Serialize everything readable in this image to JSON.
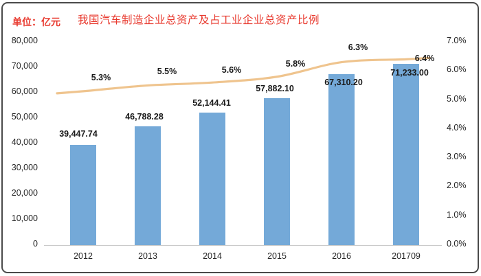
{
  "header": {
    "unit_label": "单位：亿元",
    "title": "我国汽车制造企业总资产及占工业企业总资产比例"
  },
  "colors": {
    "bar": "#74a9d8",
    "line": "#efc48e",
    "title_text": "#e8382d",
    "axis_text": "#262626",
    "axis_line": "#c9c9c9",
    "frame_border": "#4a4a4a"
  },
  "chart_data": {
    "type": "bar",
    "combo": "bar+line",
    "title": "我国汽车制造企业总资产及占工业企业总资产比例",
    "unit": "亿元",
    "categories": [
      "2012",
      "2013",
      "2014",
      "2015",
      "2016",
      "201709"
    ],
    "series": [
      {
        "name": "汽车制造企业总资产",
        "type": "bar",
        "axis": "left",
        "values": [
          39447.74,
          46788.28,
          52144.41,
          57882.1,
          67310.2,
          71233.0
        ],
        "labels": [
          "39,447.74",
          "46,788.28",
          "52,144.41",
          "57,882.10",
          "67,310.20",
          "71,233.00"
        ]
      },
      {
        "name": "占工业企业总资产比例",
        "type": "line",
        "axis": "right",
        "values": [
          5.3,
          5.5,
          5.6,
          5.8,
          6.3,
          6.4
        ],
        "labels": [
          "5.3%",
          "5.5%",
          "5.6%",
          "5.8%",
          "6.3%",
          "6.4%"
        ]
      }
    ],
    "left_axis": {
      "min": 0,
      "max": 80000,
      "ticks": [
        "0",
        "10,000",
        "20,000",
        "30,000",
        "40,000",
        "50,000",
        "60,000",
        "70,000",
        "80,000"
      ]
    },
    "right_axis": {
      "min": 0,
      "max": 7,
      "ticks": [
        "0.0%",
        "1.0%",
        "2.0%",
        "3.0%",
        "4.0%",
        "5.0%",
        "6.0%",
        "7.0%"
      ]
    },
    "grid": false,
    "legend": false
  }
}
